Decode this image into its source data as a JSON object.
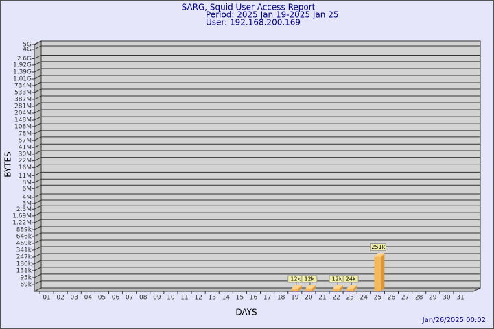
{
  "chart_data": {
    "type": "bar",
    "title": "SARG, Squid User Access Report",
    "subtitle": [
      "Period: 2025 Jan 19-2025 Jan 25",
      "User: 192.168.200.169"
    ],
    "x_label": "DAYS",
    "y_label": "BYTES",
    "footer": "Jan/26/2025 00:02",
    "categories": [
      "01",
      "02",
      "03",
      "04",
      "05",
      "06",
      "07",
      "08",
      "09",
      "10",
      "11",
      "12",
      "13",
      "14",
      "15",
      "16",
      "17",
      "18",
      "19",
      "20",
      "21",
      "22",
      "23",
      "24",
      "25",
      "26",
      "27",
      "28",
      "29",
      "30",
      "31"
    ],
    "values": [
      null,
      null,
      null,
      null,
      null,
      null,
      null,
      null,
      null,
      null,
      null,
      null,
      null,
      null,
      null,
      null,
      null,
      null,
      12000,
      12000,
      null,
      12000,
      24000,
      null,
      251000,
      null,
      null,
      null,
      null,
      null,
      null
    ],
    "value_labels": [
      null,
      null,
      null,
      null,
      null,
      null,
      null,
      null,
      null,
      null,
      null,
      null,
      null,
      null,
      null,
      null,
      null,
      null,
      "12k",
      "12k",
      null,
      "12k",
      "24k",
      null,
      "251k",
      null,
      null,
      null,
      null,
      null,
      null
    ],
    "color": "#f5b95c",
    "log_scale": true,
    "grid": true,
    "ylim": [
      50000,
      5000000000
    ],
    "yticks": [
      {
        "value": 69000,
        "label": "69k"
      },
      {
        "value": 95000,
        "label": "95k"
      },
      {
        "value": 131000,
        "label": "131k"
      },
      {
        "value": 180000,
        "label": "180k"
      },
      {
        "value": 247000,
        "label": "247k"
      },
      {
        "value": 341000,
        "label": "341k"
      },
      {
        "value": 469000,
        "label": "469k"
      },
      {
        "value": 646000,
        "label": "646k"
      },
      {
        "value": 889000,
        "label": "889k"
      },
      {
        "value": 1220000,
        "label": "1.22M"
      },
      {
        "value": 1690000,
        "label": "1.69M"
      },
      {
        "value": 2300000,
        "label": "2.3M"
      },
      {
        "value": 3000000,
        "label": "3M"
      },
      {
        "value": 4000000,
        "label": "4M"
      },
      {
        "value": 6000000,
        "label": "6M"
      },
      {
        "value": 8000000,
        "label": "8M"
      },
      {
        "value": 11000000,
        "label": "11M"
      },
      {
        "value": 16000000,
        "label": "16M"
      },
      {
        "value": 22000000,
        "label": "22M"
      },
      {
        "value": 30000000,
        "label": "30M"
      },
      {
        "value": 41000000,
        "label": "41M"
      },
      {
        "value": 57000000,
        "label": "57M"
      },
      {
        "value": 78000000,
        "label": "78M"
      },
      {
        "value": 108000000,
        "label": "108M"
      },
      {
        "value": 148000000,
        "label": "148M"
      },
      {
        "value": 204000000,
        "label": "204M"
      },
      {
        "value": 281000000,
        "label": "281M"
      },
      {
        "value": 387000000,
        "label": "387M"
      },
      {
        "value": 533000000,
        "label": "533M"
      },
      {
        "value": 734000000,
        "label": "734M"
      },
      {
        "value": 1010000000,
        "label": "1.01G"
      },
      {
        "value": 1390000000,
        "label": "1.39G"
      },
      {
        "value": 1920000000,
        "label": "1.92G"
      },
      {
        "value": 2600000000,
        "label": "2.6G"
      },
      {
        "value": 4000000000,
        "label": "4G"
      },
      {
        "value": 5000000000,
        "label": "5G"
      }
    ]
  }
}
